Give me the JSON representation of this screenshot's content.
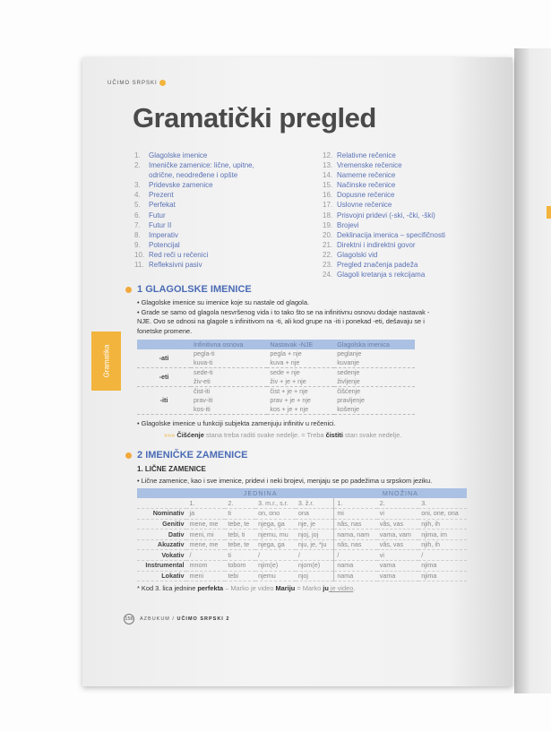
{
  "header": {
    "series": "UČIMO SRPSKI"
  },
  "title": "Gramatički pregled",
  "toc_left": [
    {
      "n": "1.",
      "t": "Glagolske imenice"
    },
    {
      "n": "2.",
      "t": "Imeničke zamenice: lične, upitne,"
    },
    {
      "n": "",
      "t": "odrične, neodređene i opšte"
    },
    {
      "n": "3.",
      "t": "Pridevske zamenice"
    },
    {
      "n": "4.",
      "t": "Prezent"
    },
    {
      "n": "5.",
      "t": "Perfekat"
    },
    {
      "n": "6.",
      "t": "Futur"
    },
    {
      "n": "7.",
      "t": "Futur II"
    },
    {
      "n": "8.",
      "t": "Imperativ"
    },
    {
      "n": "9.",
      "t": "Potencijal"
    },
    {
      "n": "10.",
      "t": "Red reči u rečenici"
    },
    {
      "n": "11.",
      "t": "Refleksivni pasiv"
    }
  ],
  "toc_right": [
    {
      "n": "12.",
      "t": "Relativne rečenice"
    },
    {
      "n": "13.",
      "t": "Vremenske rečenice"
    },
    {
      "n": "14.",
      "t": "Namerne rečenice"
    },
    {
      "n": "15.",
      "t": "Načinske rečenice"
    },
    {
      "n": "16.",
      "t": "Dopusne rečenice"
    },
    {
      "n": "17.",
      "t": "Uslovne rečenice"
    },
    {
      "n": "18.",
      "t": "Prisvojni pridevi (-ski, -čki, -ški)"
    },
    {
      "n": "19.",
      "t": "Brojevi"
    },
    {
      "n": "20.",
      "t": "Deklinacija imenica – specifičnosti"
    },
    {
      "n": "21.",
      "t": "Direktni i indirektni govor"
    },
    {
      "n": "22.",
      "t": "Glagolski vid"
    },
    {
      "n": "23.",
      "t": "Pregled značenja padeža"
    },
    {
      "n": "24.",
      "t": "Glagoli kretanja s rekcijama"
    }
  ],
  "side_tab": "Gramatika",
  "s1": {
    "num": "1",
    "title": "GLAGOLSKE IMENICE",
    "p1": "• Glagolske imenice su imenice koje su nastale od glagola.",
    "p2": "• Grade se samo od glagola nesvršenog vida i to tako što se na infinitivnu osnovu dodaje nastavak -NJE. Ovo se odnosi na glagole s infinitivom na -ti, ali kod grupe na -iti i ponekad -eti,  dešavaju se i fonetske promene.",
    "table": {
      "headers": [
        "",
        "Infinitivna osnova",
        "Nastavak -NJE",
        "Glagolska imenica"
      ],
      "groups": [
        {
          "k": "-ati",
          "rows": [
            [
              "pegla-ti",
              "pegla + nje",
              "peglanje"
            ],
            [
              "kuva-ti",
              "kuva + nje",
              "kuvanje"
            ]
          ]
        },
        {
          "k": "-eti",
          "rows": [
            [
              "sede-ti",
              "sede + nje",
              "sedenje"
            ],
            [
              "živ-eti",
              "živ + je + nje",
              "življenje"
            ]
          ]
        },
        {
          "k": "-iti",
          "rows": [
            [
              "čist-iti",
              "čist + je + nje",
              "čišćenje"
            ],
            [
              "prav-iti",
              "prav + je + nje",
              "pravljenje"
            ],
            [
              "kos-iti",
              "kos + je + nje",
              "košenje"
            ]
          ]
        }
      ]
    },
    "p3": "• Glagolske imenice u funkciji subjekta zamenjuju infinitiv u rečenici.",
    "ex": {
      "arrow": "»»»",
      "w1": "Čišćenje",
      "t1": " stana treba raditi svake nedelje. = Treba ",
      "w2": "čistiti",
      "t2": " stan svake nedelje."
    }
  },
  "s2": {
    "num": "2",
    "title": "IMENIČKE ZAMENICE",
    "sub": "1. LIČNE ZAMENICE",
    "p1": "• Lične zamenice, kao i sve imenice, pridevi i neki brojevi, menjaju se po padežima u srpskom jeziku.",
    "table": {
      "groups": [
        "JEDNINA",
        "MNOŽINA"
      ],
      "cols": [
        "1.",
        "2.",
        "3. m.r., s.r.",
        "3. ž.r.",
        "1.",
        "2.",
        "3."
      ],
      "rows": [
        {
          "k": "Nominativ",
          "v": [
            "ja",
            "ti",
            "on, ono",
            "ona",
            "mi",
            "vi",
            "oni, one, ona"
          ]
        },
        {
          "k": "Genitiv",
          "v": [
            "mene, me",
            "tebe, te",
            "njega, ga",
            "nje, je",
            "nâs, nas",
            "vâs, vas",
            "njih, ih"
          ]
        },
        {
          "k": "Dativ",
          "v": [
            "meni, mi",
            "tebi, ti",
            "njemu, mu",
            "njoj, joj",
            "nama, nam",
            "vama, vam",
            "njima, im"
          ]
        },
        {
          "k": "Akuzativ",
          "v": [
            "mene, me",
            "tebe, te",
            "njega, ga",
            "nju, je, *ju",
            "nâs, nas",
            "vâs, vas",
            "njih, ih"
          ]
        },
        {
          "k": "Vokativ",
          "v": [
            "/",
            "ti",
            "/",
            "/",
            "/",
            "vi",
            "/"
          ]
        },
        {
          "k": "Instrumental",
          "v": [
            "mnom",
            "tobom",
            "njim(e)",
            "njom(e)",
            "nama",
            "vama",
            "njima"
          ]
        },
        {
          "k": "Lokativ",
          "v": [
            "meni",
            "tebi",
            "njemu",
            "njoj",
            "nama",
            "vama",
            "njima"
          ]
        }
      ]
    },
    "note": {
      "a": "* Kod 3. lica jednine ",
      "b": "perfekta",
      "c": " – Marko je video ",
      "d": "Mariju",
      "e": " = Marko ",
      "f": "ju",
      "g": " je video",
      "h": "."
    }
  },
  "footer": {
    "page": "156",
    "brand": "AZBUKUM",
    "sep": " / ",
    "book": "UČIMO SRPSKI 2"
  }
}
